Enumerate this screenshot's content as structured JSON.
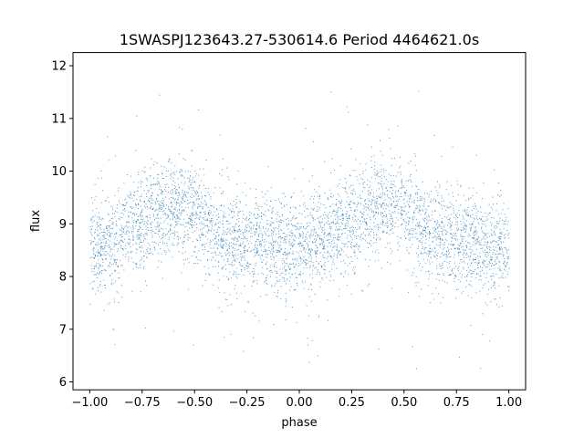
{
  "chart_data": {
    "type": "scatter",
    "title": "1SWASPJ123643.27-530614.6 Period 4464621.0s",
    "xlabel": "phase",
    "ylabel": "flux",
    "xlim": [
      -1.08,
      1.08
    ],
    "ylim": [
      5.85,
      12.25
    ],
    "xticks": [
      -1.0,
      -0.75,
      -0.5,
      -0.25,
      0.0,
      0.25,
      0.5,
      0.75,
      1.0
    ],
    "xtick_labels": [
      "−1.00",
      "−0.75",
      "−0.50",
      "−0.25",
      "0.00",
      "0.25",
      "0.50",
      "0.75",
      "1.00"
    ],
    "yticks": [
      6,
      7,
      8,
      9,
      10,
      11,
      12
    ],
    "ytick_labels": [
      "6",
      "7",
      "8",
      "9",
      "10",
      "11",
      "12"
    ],
    "grid": false,
    "legend": "none",
    "point_color": "#1f77b4",
    "series": [
      {
        "description": "folded light curve, phase range -1 to 1 (two cycles)",
        "profile_phase": [
          0.0,
          0.05,
          0.1,
          0.15,
          0.2,
          0.25,
          0.3,
          0.35,
          0.4,
          0.45,
          0.5,
          0.55,
          0.6,
          0.65,
          0.7,
          0.75,
          0.8,
          0.85,
          0.9,
          0.95,
          1.0
        ],
        "profile_flux": [
          8.55,
          8.6,
          8.65,
          8.75,
          8.95,
          9.1,
          9.25,
          9.3,
          9.35,
          9.3,
          9.2,
          9.0,
          8.8,
          8.75,
          8.65,
          8.6,
          8.7,
          8.65,
          8.6,
          8.55,
          8.55
        ],
        "scatter_sigma": 0.45,
        "flux_min": 6.1,
        "flux_max": 11.8
      }
    ]
  }
}
